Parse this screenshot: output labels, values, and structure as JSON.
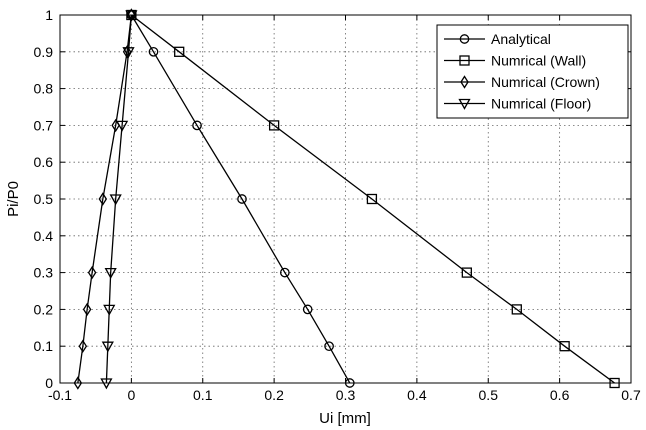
{
  "chart_data": {
    "type": "line",
    "xlabel": "Ui [mm]",
    "ylabel": "Pi/P0",
    "xlim": [
      -0.1,
      0.7
    ],
    "ylim": [
      0,
      1
    ],
    "xticks": [
      "-0.1",
      "0",
      "0.1",
      "0.2",
      "0.3",
      "0.4",
      "0.5",
      "0.6",
      "0.7"
    ],
    "yticks": [
      "0",
      "0.1",
      "0.2",
      "0.3",
      "0.4",
      "0.5",
      "0.6",
      "0.7",
      "0.8",
      "0.9",
      "1"
    ],
    "grid": true,
    "legend_position": "top-right",
    "series": [
      {
        "name": "Analytical",
        "marker": "circle",
        "points": [
          [
            0.0,
            1.0
          ],
          [
            0.031,
            0.9
          ],
          [
            0.092,
            0.7
          ],
          [
            0.155,
            0.5
          ],
          [
            0.215,
            0.3
          ],
          [
            0.247,
            0.2
          ],
          [
            0.277,
            0.1
          ],
          [
            0.306,
            0.0
          ]
        ]
      },
      {
        "name": "Numrical (Wall)",
        "marker": "square",
        "points": [
          [
            0.0,
            1.0
          ],
          [
            0.067,
            0.9
          ],
          [
            0.2,
            0.7
          ],
          [
            0.337,
            0.5
          ],
          [
            0.47,
            0.3
          ],
          [
            0.54,
            0.2
          ],
          [
            0.607,
            0.1
          ],
          [
            0.677,
            0.0
          ]
        ]
      },
      {
        "name": "Numrical (Crown)",
        "marker": "diamond",
        "points": [
          [
            0.0,
            1.0
          ],
          [
            -0.006,
            0.9
          ],
          [
            -0.022,
            0.7
          ],
          [
            -0.04,
            0.5
          ],
          [
            -0.055,
            0.3
          ],
          [
            -0.062,
            0.2
          ],
          [
            -0.068,
            0.1
          ],
          [
            -0.075,
            0.0
          ]
        ]
      },
      {
        "name": "Numrical (Floor)",
        "marker": "triangle-down",
        "points": [
          [
            0.0,
            1.0
          ],
          [
            -0.004,
            0.9
          ],
          [
            -0.013,
            0.7
          ],
          [
            -0.022,
            0.5
          ],
          [
            -0.029,
            0.3
          ],
          [
            -0.031,
            0.2
          ],
          [
            -0.033,
            0.1
          ],
          [
            -0.035,
            0.0
          ]
        ]
      }
    ]
  }
}
